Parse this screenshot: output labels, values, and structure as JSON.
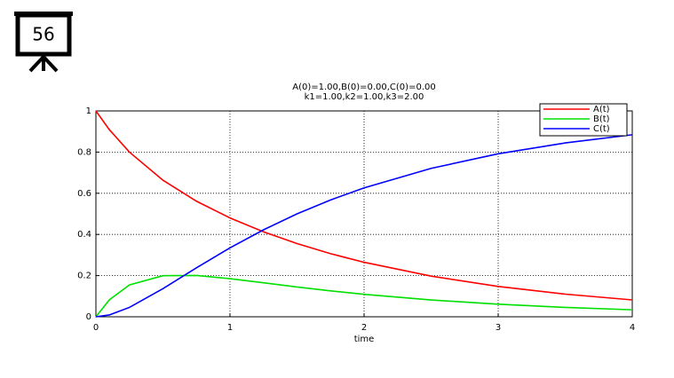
{
  "slide_number": "56",
  "chart_data": {
    "type": "line",
    "title": "A(0)=1.00,B(0)=0.00,C(0)=0.00",
    "subtitle": "k1=1.00,k2=1.00,k3=2.00",
    "x_label": "time",
    "x": [
      0,
      0.1,
      0.25,
      0.5,
      0.75,
      1,
      1.25,
      1.5,
      1.75,
      2,
      2.5,
      3,
      3.5,
      4
    ],
    "series": [
      {
        "name": "A(t)",
        "color": "#ff0000",
        "values": [
          1,
          0.9091,
          0.7997,
          0.6635,
          0.5614,
          0.48,
          0.4125,
          0.3554,
          0.3066,
          0.2647,
          0.1974,
          0.1472,
          0.1099,
          0.0819
        ]
      },
      {
        "name": "B(t)",
        "color": "#00e000",
        "values": [
          0,
          0.0821,
          0.1548,
          0.1997,
          0.2006,
          0.1852,
          0.1651,
          0.1447,
          0.1259,
          0.1092,
          0.0817,
          0.061,
          0.0455,
          0.0339
        ]
      },
      {
        "name": "C(t)",
        "color": "#0000ff",
        "values": [
          0,
          0.0088,
          0.0455,
          0.1368,
          0.238,
          0.3348,
          0.4224,
          0.4999,
          0.5675,
          0.6261,
          0.7209,
          0.7918,
          0.8446,
          0.8842
        ]
      }
    ],
    "xlim": [
      0,
      4
    ],
    "xticks": [
      0,
      1,
      2,
      3,
      4
    ],
    "ylim": [
      0,
      1
    ],
    "yticks": [
      0,
      0.2,
      0.4,
      0.6,
      0.8,
      1
    ],
    "grid": true,
    "legend": "upper right"
  }
}
